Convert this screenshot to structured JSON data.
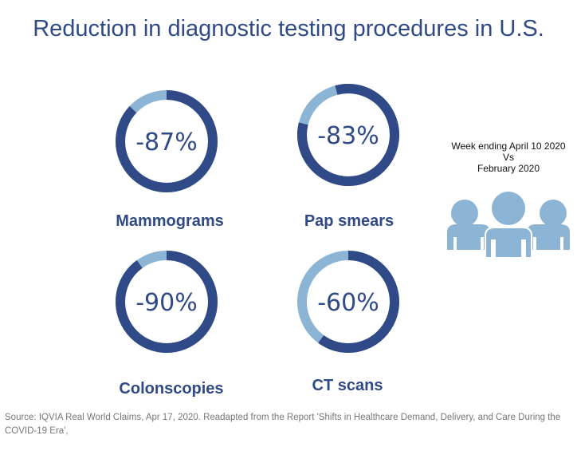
{
  "title": "Reduction in diagnostic testing procedures in U.S.",
  "comparison": {
    "line1": "Week ending April 10 2020",
    "line2": "Vs",
    "line3": "February 2020"
  },
  "icon": "people-group-icon",
  "source": "Source: IQVIA Real World Claims, Apr 17, 2020. Readapted from the Report 'Shifts in Healthcare Demand, Delivery, and Care During the COVID-19 Era',",
  "colors": {
    "dark": "#2f4a86",
    "light": "#8cb4d5"
  },
  "chart_data": {
    "type": "pie",
    "title": "Reduction in diagnostic testing procedures in U.S.",
    "items": [
      {
        "name": "Mammograms",
        "value": -87,
        "label": "-87%"
      },
      {
        "name": "Pap smears",
        "value": -83,
        "label": "-83%"
      },
      {
        "name": "Colonscopies",
        "value": -90,
        "label": "-90%"
      },
      {
        "name": "CT scans",
        "value": -60,
        "label": "-60%"
      }
    ]
  }
}
